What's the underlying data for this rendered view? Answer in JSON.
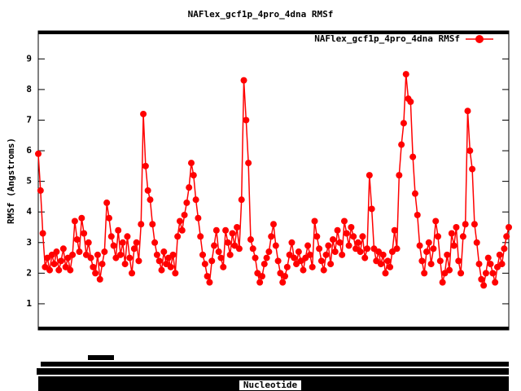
{
  "chart_data": {
    "type": "line",
    "title": "NAFlex_gcf1p_4pro_4dna RMSf",
    "x_label": "Nucleotide",
    "y_label": "RMSf (Angstroms)",
    "ylim": [
      0.2,
      9.86
    ],
    "yticks": [
      1,
      2,
      3,
      4,
      5,
      6,
      7,
      8,
      9
    ],
    "grid": false,
    "legend": "top-right",
    "series": [
      {
        "name": "NAFlex_gcf1p_4pro_4dna RMSf",
        "color": "#ff0000",
        "values": [
          5.9,
          4.7,
          3.3,
          2.2,
          2.5,
          2.1,
          2.6,
          2.3,
          2.7,
          2.1,
          2.4,
          2.8,
          2.2,
          2.5,
          2.1,
          2.6,
          3.7,
          3.1,
          2.7,
          3.8,
          3.3,
          2.6,
          3.0,
          2.5,
          2.2,
          2.0,
          2.6,
          1.8,
          2.3,
          2.7,
          4.3,
          3.8,
          3.2,
          2.9,
          2.5,
          3.4,
          2.6,
          3.0,
          2.3,
          3.2,
          2.5,
          2.0,
          2.8,
          3.0,
          2.4,
          3.6,
          7.2,
          5.5,
          4.7,
          4.4,
          3.6,
          3.0,
          2.6,
          2.4,
          2.1,
          2.7,
          2.3,
          2.5,
          2.2,
          2.6,
          2.0,
          3.2,
          3.7,
          3.4,
          3.9,
          4.3,
          4.8,
          5.6,
          5.2,
          4.4,
          3.8,
          3.2,
          2.6,
          2.3,
          1.9,
          1.7,
          2.4,
          2.9,
          3.4,
          2.7,
          2.5,
          2.2,
          3.4,
          3.0,
          2.6,
          3.3,
          2.9,
          3.5,
          2.8,
          4.4,
          8.3,
          7.0,
          5.6,
          3.1,
          2.8,
          2.5,
          2.0,
          1.7,
          1.9,
          2.3,
          2.5,
          2.7,
          3.2,
          3.6,
          2.9,
          2.4,
          2.0,
          1.7,
          1.9,
          2.2,
          2.6,
          3.0,
          2.5,
          2.3,
          2.7,
          2.4,
          2.1,
          2.5,
          2.9,
          2.6,
          2.2,
          3.7,
          3.2,
          2.8,
          2.4,
          2.1,
          2.6,
          2.9,
          2.3,
          3.1,
          2.7,
          3.4,
          3.0,
          2.6,
          3.7,
          3.3,
          2.9,
          3.5,
          3.2,
          2.8,
          3.0,
          2.7,
          3.2,
          2.5,
          2.8,
          5.2,
          4.1,
          2.8,
          2.4,
          2.7,
          2.3,
          2.6,
          2.0,
          2.4,
          2.2,
          2.7,
          3.4,
          2.8,
          5.2,
          6.2,
          6.9,
          8.5,
          7.7,
          7.6,
          5.8,
          4.6,
          3.9,
          2.9,
          2.4,
          2.0,
          2.7,
          3.0,
          2.3,
          2.8,
          3.7,
          3.2,
          2.4,
          1.7,
          2.0,
          2.6,
          2.1,
          3.3,
          2.9,
          3.5,
          2.4,
          2.0,
          3.2,
          3.6,
          7.3,
          6.0,
          5.4,
          3.6,
          3.0,
          2.3,
          1.8,
          1.6,
          2.0,
          2.5,
          2.3,
          2.0,
          1.7,
          2.2,
          2.6,
          2.3,
          2.8,
          3.2,
          3.5
        ]
      }
    ]
  }
}
